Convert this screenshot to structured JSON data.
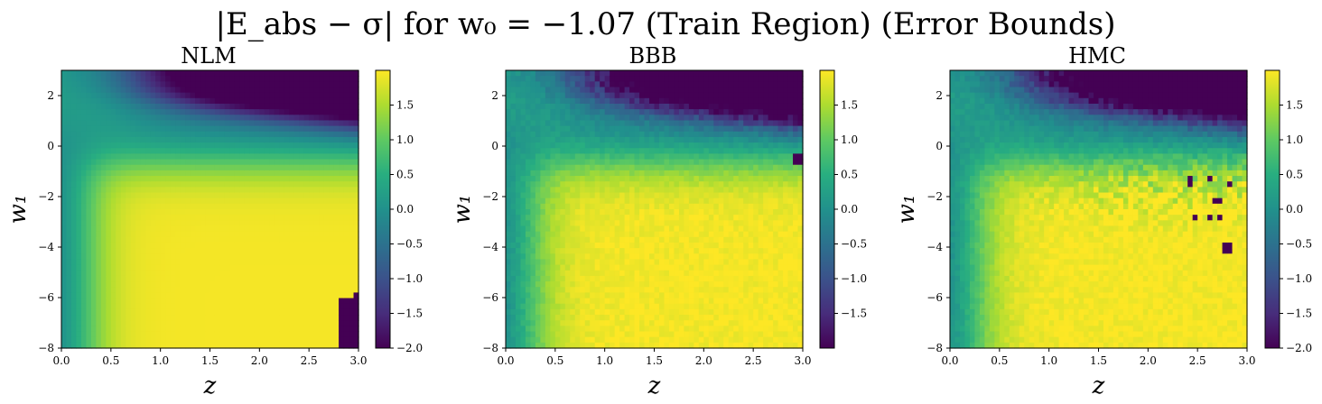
{
  "suptitle": "|E_abs − σ| for w₀ = −1.07 (Train Region) (Error Bounds)",
  "chart_data": [
    {
      "type": "heatmap",
      "title": "NLM",
      "xlabel": "z",
      "ylabel": "w₁",
      "xlim": [
        0.0,
        3.0
      ],
      "ylim": [
        -8,
        3
      ],
      "xticks": [
        "0.0",
        "0.5",
        "1.0",
        "1.5",
        "2.0",
        "2.5",
        "3.0"
      ],
      "xtick_values": [
        0.0,
        0.5,
        1.0,
        1.5,
        2.0,
        2.5,
        3.0
      ],
      "yticks": [
        "2",
        "0",
        "−2",
        "−4",
        "−6",
        "−8"
      ],
      "ytick_values": [
        2,
        0,
        -2,
        -4,
        -6,
        -8
      ],
      "colormap": "viridis",
      "clim": [
        -2.0,
        2.0
      ],
      "colorbar_ticks": [
        "1.5",
        "1.0",
        "0.5",
        "0.0",
        "−0.5",
        "−1.0",
        "−1.5",
        "−2.0"
      ],
      "colorbar_tick_values": [
        1.5,
        1.0,
        0.5,
        0.0,
        -0.5,
        -1.0,
        -1.5,
        -2.0
      ],
      "grid": false,
      "field_description": "low values along left edge (z≈0), saturating high (~1.9) for z>0.8 at w1<−1, dark purple (~−2) band at top-right (w1>1.5, z>1.5), dark patch at bottom-right corner (z>2.8, w1<−6)"
    },
    {
      "type": "heatmap",
      "title": "BBB",
      "xlabel": "z",
      "ylabel": "w₁",
      "xlim": [
        0.0,
        3.0
      ],
      "ylim": [
        -8,
        3
      ],
      "xticks": [
        "0.0",
        "0.5",
        "1.0",
        "1.5",
        "2.0",
        "2.5",
        "3.0"
      ],
      "xtick_values": [
        0.0,
        0.5,
        1.0,
        1.5,
        2.0,
        2.5,
        3.0
      ],
      "yticks": [
        "2",
        "0",
        "−2",
        "−4",
        "−6",
        "−8"
      ],
      "ytick_values": [
        2,
        0,
        -2,
        -4,
        -6,
        -8
      ],
      "colormap": "viridis",
      "clim": [
        -2.0,
        2.0
      ],
      "colorbar_ticks": [
        "1.5",
        "1.0",
        "0.5",
        "0.0",
        "−0.5",
        "−1.0",
        "−1.5"
      ],
      "colorbar_tick_values": [
        1.5,
        1.0,
        0.5,
        0.0,
        -0.5,
        -1.0,
        -1.5
      ],
      "grid": false,
      "field_description": "similar pattern, noisy dark purple top-right region, high yellow for large z and low w1"
    },
    {
      "type": "heatmap",
      "title": "HMC",
      "xlabel": "z",
      "ylabel": "w₁",
      "xlim": [
        0.0,
        3.0
      ],
      "ylim": [
        -8,
        3
      ],
      "xticks": [
        "0.0",
        "0.5",
        "1.0",
        "1.5",
        "2.0",
        "2.5",
        "3.0"
      ],
      "xtick_values": [
        0.0,
        0.5,
        1.0,
        1.5,
        2.0,
        2.5,
        3.0
      ],
      "yticks": [
        "2",
        "0",
        "−2",
        "−4",
        "−6",
        "−8"
      ],
      "ytick_values": [
        2,
        0,
        -2,
        -4,
        -6,
        -8
      ],
      "colormap": "viridis",
      "clim": [
        -2.0,
        2.0
      ],
      "colorbar_ticks": [
        "1.5",
        "1.0",
        "0.5",
        "0.0",
        "−0.5",
        "−1.0",
        "−1.5",
        "−2.0"
      ],
      "colorbar_tick_values": [
        1.5,
        1.0,
        0.5,
        0.0,
        -0.5,
        -1.0,
        -1.5,
        -2.0
      ],
      "grid": false,
      "field_description": "dark purple top-right region, noisy transition band near w1≈−1 to −3 with scattered dark outlier cells at z>2"
    }
  ]
}
